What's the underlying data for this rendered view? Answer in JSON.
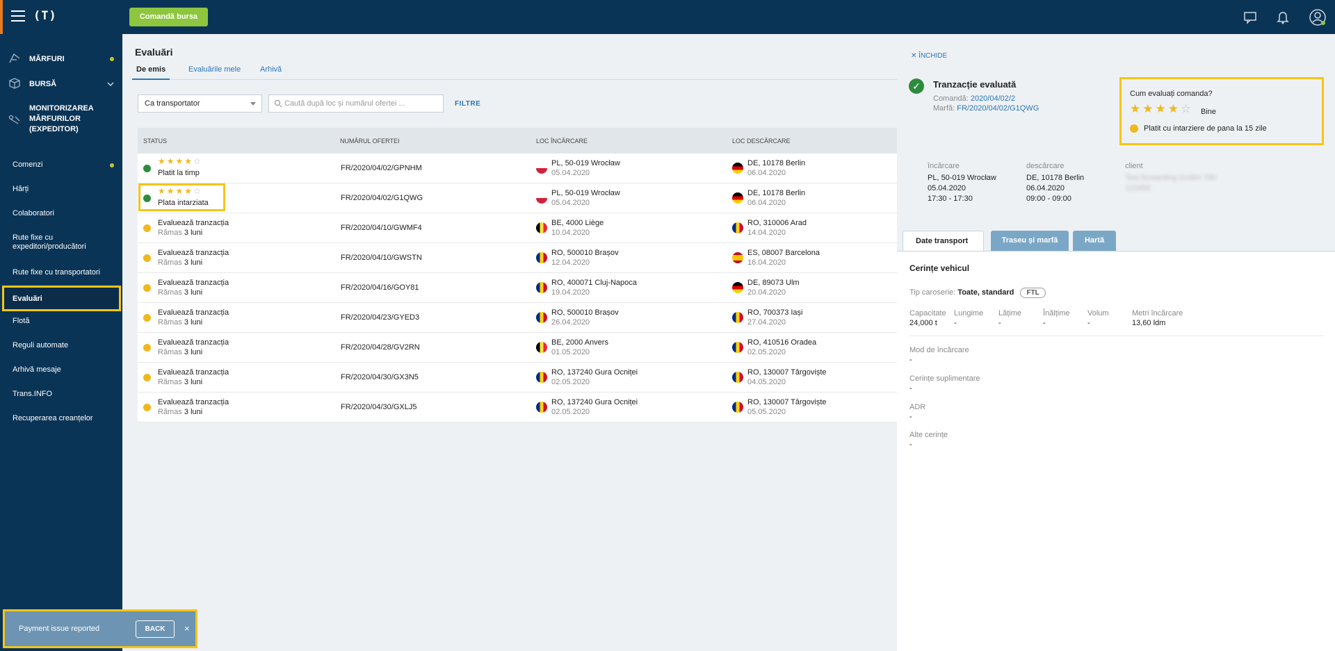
{
  "header": {
    "logo": "(T)",
    "order_button": "Comandă bursa"
  },
  "sidebar": {
    "items": [
      {
        "label": "MĂRFURI"
      },
      {
        "label": "BURSĂ"
      },
      {
        "label": "MONITORIZAREA MĂRFURILOR (EXPEDITOR)"
      },
      {
        "label": "Comenzi"
      },
      {
        "label": "Hărți"
      },
      {
        "label": "Colaboratori"
      },
      {
        "label": "Rute fixe cu expeditori/producători"
      },
      {
        "label": "Rute fixe cu transportatori"
      },
      {
        "label": "Evaluări"
      },
      {
        "label": "Flotă"
      },
      {
        "label": "Reguli automate"
      },
      {
        "label": "Arhivă mesaje"
      },
      {
        "label": "Trans.INFO"
      },
      {
        "label": "Recuperarea creanțelor"
      }
    ]
  },
  "main": {
    "title": "Evaluări",
    "tabs": [
      {
        "label": "De emis"
      },
      {
        "label": "Evaluările mele"
      },
      {
        "label": "Arhivă"
      }
    ],
    "role_select": "Ca transportator",
    "search_placeholder": "Caută după loc și numărul ofertei ...",
    "filters": "FILTRE",
    "columns": [
      "STATUS",
      "NUMĂRUL OFERTEI",
      "LOC ÎNCĂRCARE",
      "LOC DESCĂRCARE"
    ],
    "rows": [
      {
        "status": "Platit la timp",
        "stars": 4,
        "offer": "FR/2020/04/02/GPNHM",
        "load": "PL, 50-019 Wrocław",
        "load_date": "05.04.2020",
        "load_flag": "pl",
        "unload": "DE, 10178 Berlin",
        "unload_date": "06.04.2020",
        "unload_flag": "de"
      },
      {
        "status": "Plata intarziata",
        "stars": 4,
        "offer": "FR/2020/04/02/G1QWG",
        "load": "PL, 50-019 Wrocław",
        "load_date": "05.04.2020",
        "load_flag": "pl",
        "unload": "DE, 10178 Berlin",
        "unload_date": "06.04.2020",
        "unload_flag": "de"
      },
      {
        "status": "Evaluează tranzacția",
        "remain_prefix": "Rămas",
        "remain": "3 luni",
        "offer": "FR/2020/04/10/GWMF4",
        "load": "BE, 4000 Liège",
        "load_date": "10.04.2020",
        "load_flag": "be",
        "unload": "RO, 310006 Arad",
        "unload_date": "14.04.2020",
        "unload_flag": "ro"
      },
      {
        "status": "Evaluează tranzacția",
        "remain_prefix": "Rămas",
        "remain": "3 luni",
        "offer": "FR/2020/04/10/GWSTN",
        "load": "RO, 500010 Brașov",
        "load_date": "12.04.2020",
        "load_flag": "ro",
        "unload": "ES, 08007 Barcelona",
        "unload_date": "16.04.2020",
        "unload_flag": "es"
      },
      {
        "status": "Evaluează tranzacția",
        "remain_prefix": "Rămas",
        "remain": "3 luni",
        "offer": "FR/2020/04/16/GOY81",
        "load": "RO, 400071 Cluj-Napoca",
        "load_date": "19.04.2020",
        "load_flag": "ro",
        "unload": "DE, 89073 Ulm",
        "unload_date": "20.04.2020",
        "unload_flag": "de"
      },
      {
        "status": "Evaluează tranzacția",
        "remain_prefix": "Rămas",
        "remain": "3 luni",
        "offer": "FR/2020/04/23/GYED3",
        "load": "RO, 500010 Brașov",
        "load_date": "26.04.2020",
        "load_flag": "ro",
        "unload": "RO, 700373 Iași",
        "unload_date": "27.04.2020",
        "unload_flag": "ro"
      },
      {
        "status": "Evaluează tranzacția",
        "remain_prefix": "Rămas",
        "remain": "3 luni",
        "offer": "FR/2020/04/28/GV2RN",
        "load": "BE, 2000 Anvers",
        "load_date": "01.05.2020",
        "load_flag": "be",
        "unload": "RO, 410516 Oradea",
        "unload_date": "02.05.2020",
        "unload_flag": "ro"
      },
      {
        "status": "Evaluează tranzacția",
        "remain_prefix": "Rămas",
        "remain": "3 luni",
        "offer": "FR/2020/04/30/GX3N5",
        "load": "RO, 137240 Gura Ocniței",
        "load_date": "02.05.2020",
        "load_flag": "ro",
        "unload": "RO, 130007 Târgoviște",
        "unload_date": "04.05.2020",
        "unload_flag": "ro"
      },
      {
        "status": "Evaluează tranzacția",
        "remain_prefix": "Rămas",
        "remain": "3 luni",
        "offer": "FR/2020/04/30/GXLJ5",
        "load": "RO, 137240 Gura Ocniței",
        "load_date": "02.05.2020",
        "load_flag": "ro",
        "unload": "RO, 130007 Târgoviște",
        "unload_date": "05.05.2020",
        "unload_flag": "ro"
      }
    ]
  },
  "panel": {
    "close": "ÎNCHIDE",
    "title": "Tranzacție evaluată",
    "order_label": "Comandă:",
    "order_link": "2020/04/02/2",
    "cargo_label": "Marfă:",
    "cargo_link": "FR/2020/04/02/G1QWG",
    "rating_question": "Cum evaluați comanda?",
    "rating_value": 4,
    "rating_label": "Bine",
    "rating_note": "Platit cu intarziere de pana la 15 zile",
    "load_h": "încărcare",
    "load_place": "PL, 50-019 Wrocław",
    "load_date": "05.04.2020",
    "load_time": "17:30 - 17:30",
    "unload_h": "descărcare",
    "unload_place": "DE, 10178 Berlin",
    "unload_date": "06.04.2020",
    "unload_time": "09:00 - 09:00",
    "client_h": "client",
    "client_name": "Test forwarding GmbH 789",
    "client_id": "123456",
    "tabs": [
      {
        "label": "Date transport"
      },
      {
        "label": "Traseu și marfă"
      },
      {
        "label": "Hartă"
      }
    ],
    "vehicle_title": "Cerințe vehicul",
    "body_label": "Tip caroserie:",
    "body_value": "Toate, standard",
    "body_badge": "FTL",
    "dims": [
      {
        "h": "Capacitate",
        "v": "24,000 t"
      },
      {
        "h": "Lungime",
        "v": "-"
      },
      {
        "h": "Lățime",
        "v": "-"
      },
      {
        "h": "Înălțime",
        "v": "-"
      },
      {
        "h": "Volum",
        "v": "-"
      },
      {
        "h": "Metri încărcare",
        "v": "13,60 ldm"
      }
    ],
    "fields": [
      {
        "h": "Mod de încărcare",
        "v": "-"
      },
      {
        "h": "Cerințe suplimentare",
        "v": "-"
      },
      {
        "h": "ADR",
        "v": "-"
      },
      {
        "h": "Alte cerințe",
        "v": "-"
      }
    ]
  },
  "toast": {
    "message": "Payment issue reported",
    "back": "BACK",
    "close": "×"
  },
  "colors": {
    "navy": "#0a3456",
    "green": "#8ec63f",
    "highlight": "#f5c518",
    "link": "#2a76b7"
  }
}
